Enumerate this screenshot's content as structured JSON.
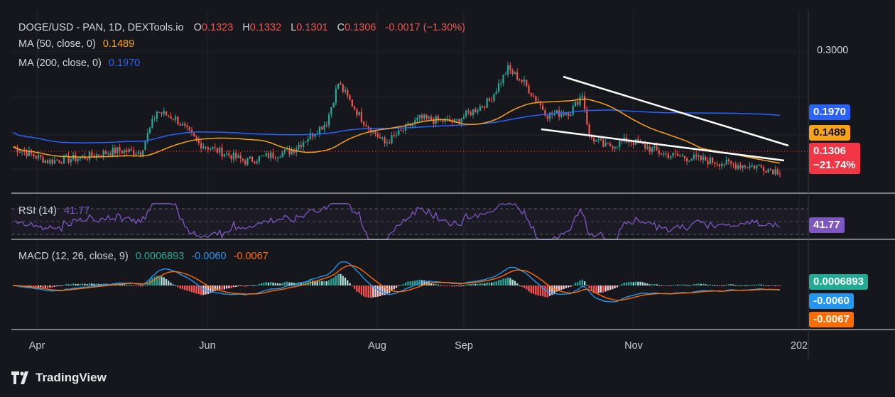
{
  "header": {
    "symbol": "DOGE/USD - PAN, 1D, DEXTools.io",
    "o_label": "O",
    "o_value": "0.1323",
    "h_label": "H",
    "h_value": "0.1332",
    "l_label": "L",
    "l_value": "0.1301",
    "c_label": "C",
    "c_value": "0.1306",
    "change": "-0.0017 (−1.30%)"
  },
  "legends": {
    "ma50_label": "MA (50, close, 0)",
    "ma50_value": "0.1489",
    "ma200_label": "MA (200, close, 0)",
    "ma200_value": "0.1970",
    "rsi_label": "RSI (14)",
    "rsi_value": "41.77",
    "macd_label": "MACD (12, 26, close, 9)",
    "macd_hist": "0.0006893",
    "macd_line": "-0.0060",
    "macd_signal": "-0.0067"
  },
  "price_labels": {
    "ma200": "0.1970",
    "ma50": "0.1489",
    "close": "0.1306",
    "close_pct": "−21.74%",
    "rsi": "41.77",
    "macd_hist": "0.0006893",
    "macd_line": "-0.0060",
    "macd_signal": "-0.0067",
    "y_tick": "0.3000"
  },
  "x_axis": [
    "Apr",
    "Jun",
    "Aug",
    "Sep",
    "Nov",
    "202"
  ],
  "brand": "TradingView",
  "colors": {
    "up": "#26a69a",
    "down": "#ef5350",
    "ma50": "#f7a21b",
    "ma200": "#2962ff",
    "rsi": "#7e57c2",
    "macd": "#2196f3",
    "signal": "#ff6d00",
    "label_ma200": "#2962ff",
    "label_ma50": "#f7a21b",
    "label_close": "#f23645",
    "label_rsi": "#7e57c2",
    "label_hist": "#22ab94",
    "label_macd": "#2196f3",
    "label_signal": "#ff6d00"
  },
  "chart_data": {
    "type": "candlestick",
    "title": "DOGE/USD - PAN, 1D, DEXTools.io",
    "price_key_points": [
      [
        0,
        0.165
      ],
      [
        15,
        0.145
      ],
      [
        30,
        0.15
      ],
      [
        45,
        0.16
      ],
      [
        55,
        0.158
      ],
      [
        62,
        0.215
      ],
      [
        70,
        0.205
      ],
      [
        80,
        0.17
      ],
      [
        100,
        0.145
      ],
      [
        120,
        0.16
      ],
      [
        135,
        0.2
      ],
      [
        140,
        0.255
      ],
      [
        150,
        0.205
      ],
      [
        160,
        0.17
      ],
      [
        175,
        0.205
      ],
      [
        190,
        0.2
      ],
      [
        205,
        0.23
      ],
      [
        213,
        0.275
      ],
      [
        220,
        0.255
      ],
      [
        230,
        0.21
      ],
      [
        240,
        0.215
      ],
      [
        245,
        0.24
      ],
      [
        248,
        0.18
      ],
      [
        255,
        0.165
      ],
      [
        265,
        0.175
      ],
      [
        280,
        0.155
      ],
      [
        295,
        0.148
      ],
      [
        310,
        0.14
      ],
      [
        320,
        0.138
      ],
      [
        330,
        0.1306
      ]
    ],
    "ma50_value": 0.1489,
    "ma200_value": 0.197,
    "rsi_value": 41.77,
    "macd": {
      "histogram": 0.0006893,
      "macd": -0.006,
      "signal": -0.0067
    },
    "y_axis_label_visible": [
      "0.3000"
    ],
    "x_categories": [
      "Apr",
      "Jun",
      "Aug",
      "Sep",
      "Nov",
      "202"
    ],
    "annotations": [
      "falling wedge trendlines"
    ]
  }
}
